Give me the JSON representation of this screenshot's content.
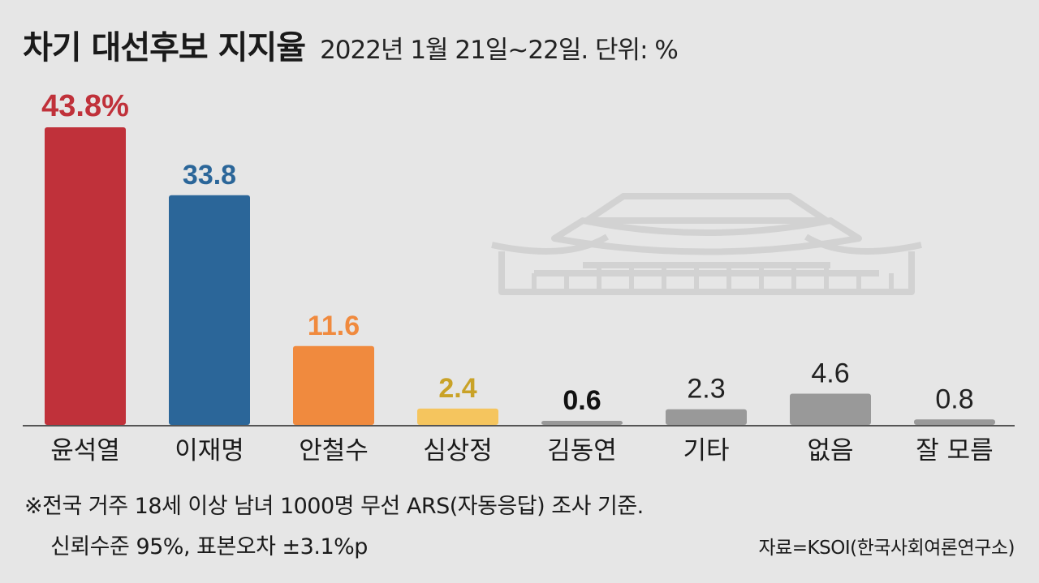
{
  "title": "차기 대선후보 지지율",
  "subtitle": "2022년 1월 21일~22일. 단위: %",
  "notes": {
    "line1": "※전국 거주 18세 이상 남녀 1000명 무선 ARS(자동응답) 조사 기준.",
    "line2": "신뢰수준 95%, 표본오차 ±3.1%p"
  },
  "source": "자료=KSOI(한국사회여론연구소)",
  "watermark_icon": "palace-roof-icon",
  "chart_data": {
    "type": "bar",
    "title": "차기 대선후보 지지율",
    "subtitle": "2022년 1월 21일~22일. 단위: %",
    "categories": [
      "윤석열",
      "이재명",
      "안철수",
      "심상정",
      "김동연",
      "기타",
      "없음",
      "잘 모름"
    ],
    "values": [
      43.8,
      33.8,
      11.6,
      2.4,
      0.6,
      2.3,
      4.6,
      0.8
    ],
    "value_labels": [
      "43.8%",
      "33.8",
      "11.6",
      "2.4",
      "0.6",
      "2.3",
      "4.6",
      "0.8"
    ],
    "colors": [
      "#c0313a",
      "#2b6699",
      "#f08a3e",
      "#f5c55e",
      "#999999",
      "#999999",
      "#999999",
      "#999999"
    ],
    "label_colors": [
      "#c0313a",
      "#2b6699",
      "#f08a3e",
      "#c9a227",
      "#111111",
      "#222222",
      "#222222",
      "#222222"
    ],
    "ylim": [
      0,
      45
    ],
    "grid": false,
    "legend": "none"
  }
}
